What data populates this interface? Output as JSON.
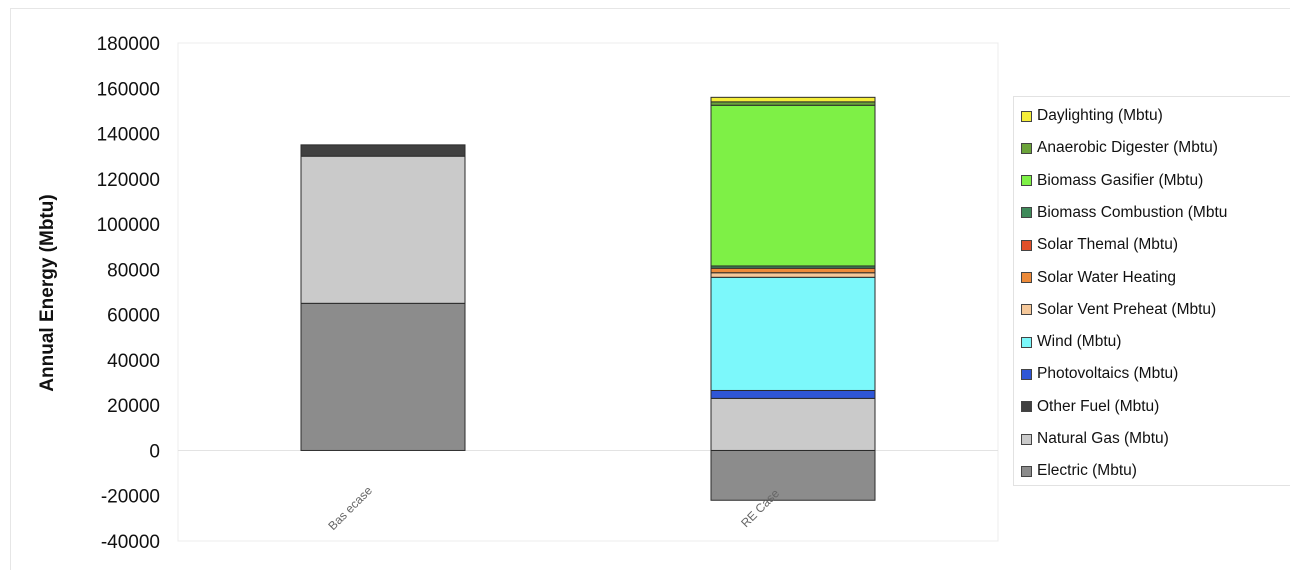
{
  "chart_data": {
    "type": "bar",
    "stacked": true,
    "title": "",
    "xlabel": "",
    "ylabel": "Annual Energy (Mbtu)",
    "ylim": [
      -40000,
      180000
    ],
    "yticks": [
      180000,
      160000,
      140000,
      120000,
      100000,
      80000,
      60000,
      40000,
      20000,
      0,
      -20000,
      -40000
    ],
    "categories": [
      "Bas ecase",
      "RE Case"
    ],
    "legend_position": "right",
    "series": [
      {
        "name": "Electric (Mbtu)",
        "color": "#8c8c8c",
        "values": [
          65000,
          -22000
        ]
      },
      {
        "name": "Natural Gas (Mbtu)",
        "color": "#cacaca",
        "values": [
          65000,
          23000
        ]
      },
      {
        "name": "Other Fuel (Mbtu)",
        "color": "#404040",
        "values": [
          5000,
          0
        ]
      },
      {
        "name": "Photovoltaics (Mbtu)",
        "color": "#2f56d6",
        "values": [
          0,
          3500
        ]
      },
      {
        "name": "Wind (Mbtu)",
        "color": "#7cf8fb",
        "values": [
          0,
          50000
        ]
      },
      {
        "name": "Solar Vent Preheat (Mbtu)",
        "color": "#f5c89a",
        "values": [
          0,
          2000
        ]
      },
      {
        "name": "Solar Water Heating",
        "color": "#ec8a3a",
        "values": [
          0,
          2000
        ]
      },
      {
        "name": "Solar Themal (Mbtu)",
        "color": "#e0502a",
        "values": [
          0,
          0
        ]
      },
      {
        "name": "Biomass Combustion (Mbtu",
        "color": "#3f8a5a",
        "values": [
          0,
          1000
        ]
      },
      {
        "name": "Biomass Gasifier (Mbtu)",
        "color": "#7ef046",
        "values": [
          0,
          71000
        ]
      },
      {
        "name": "Anaerobic Digester (Mbtu)",
        "color": "#6ba33a",
        "values": [
          0,
          1500
        ]
      },
      {
        "name": "Daylighting (Mbtu)",
        "color": "#f5ee3a",
        "values": [
          0,
          2000
        ]
      }
    ]
  }
}
